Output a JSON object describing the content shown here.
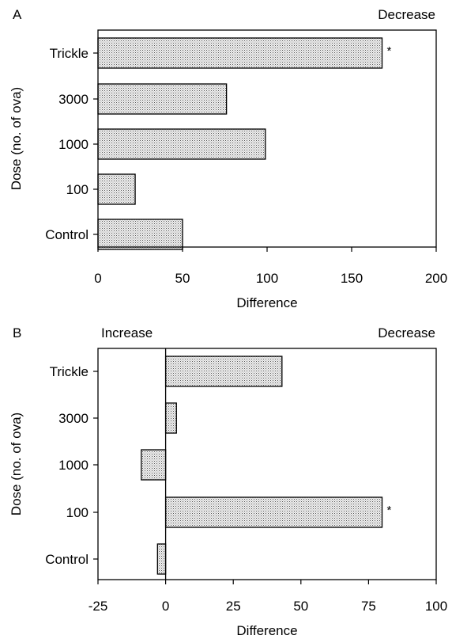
{
  "chart_data": [
    {
      "type": "bar",
      "orientation": "horizontal",
      "panel_label": "A",
      "corner_note_right": "Decrease",
      "categories": [
        "Trickle",
        "3000",
        "1000",
        "100",
        "Control"
      ],
      "values": [
        168,
        76,
        99,
        22,
        50
      ],
      "annotations": [
        {
          "category": "Trickle",
          "text": "*"
        }
      ],
      "xlabel": "Difference",
      "ylabel": "Dose (no. of ova)",
      "xlim": [
        0,
        200
      ],
      "xticks": [
        "0",
        "50",
        "100",
        "150",
        "200"
      ],
      "xtick_values": [
        0,
        50,
        100,
        150,
        200
      ],
      "fill": "stippled"
    },
    {
      "type": "bar",
      "orientation": "horizontal",
      "panel_label": "B",
      "corner_note_left": "Increase",
      "corner_note_right": "Decrease",
      "categories": [
        "Trickle",
        "3000",
        "1000",
        "100",
        "Control"
      ],
      "values": [
        43,
        4,
        -9,
        80,
        -3
      ],
      "annotations": [
        {
          "category": "100",
          "text": "*"
        }
      ],
      "xlabel": "Difference",
      "ylabel": "Dose (no. of ova)",
      "xlim": [
        -25,
        100
      ],
      "xticks": [
        "-25",
        "0",
        "25",
        "50",
        "75",
        "100"
      ],
      "xtick_values": [
        -25,
        0,
        25,
        50,
        75,
        100
      ],
      "fill": "stippled"
    }
  ]
}
